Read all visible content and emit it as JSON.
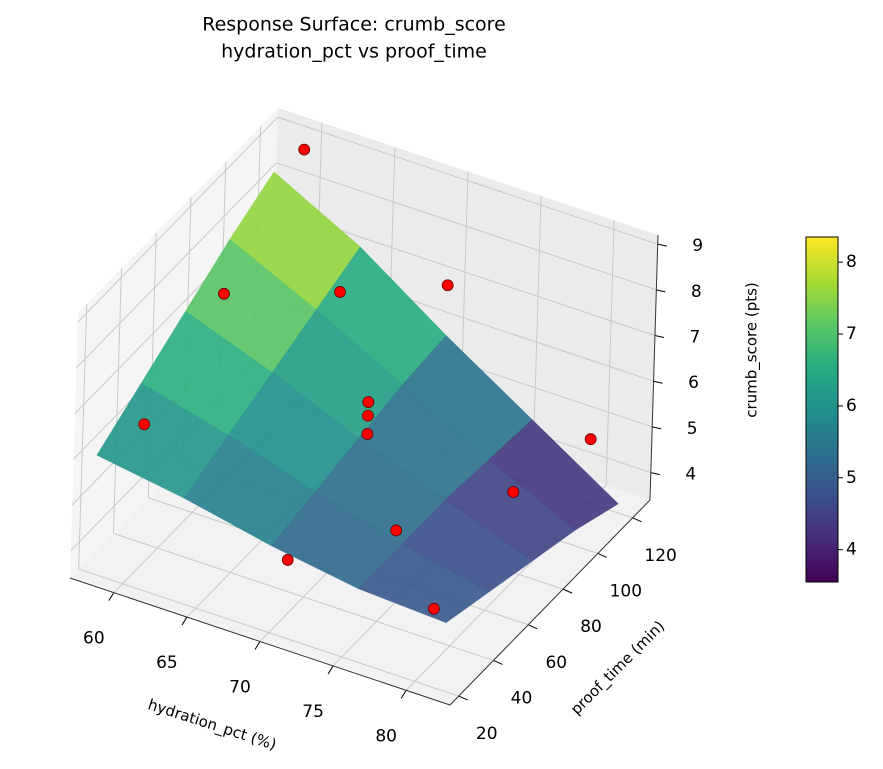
{
  "chart_data": {
    "type": "surface3d",
    "title": "Response Surface: crumb_score",
    "subtitle": "hydration_pct vs proof_time",
    "x_label": "hydration_pct (%)",
    "y_label": "proof_time (min)",
    "z_label": "crumb_score (pts)",
    "xlim": [
      57,
      83
    ],
    "xticks": [
      60,
      65,
      70,
      75,
      80
    ],
    "ylim": [
      15,
      130
    ],
    "yticks": [
      20,
      40,
      60,
      80,
      100,
      120
    ],
    "zlim": [
      3.4,
      9.2
    ],
    "zticks": [
      4,
      5,
      6,
      7,
      8,
      9
    ],
    "surface": {
      "x": [
        58,
        64,
        70,
        76,
        82
      ],
      "y": [
        20,
        45,
        70,
        95,
        120
      ],
      "z": [
        [
          6.0,
          5.7,
          5.3,
          5.0,
          4.9
        ],
        [
          6.6,
          6.1,
          5.5,
          5.0,
          4.6
        ],
        [
          7.2,
          6.5,
          5.7,
          5.0,
          4.3
        ],
        [
          7.8,
          6.9,
          5.9,
          4.9,
          4.0
        ],
        [
          8.3,
          7.3,
          6.0,
          4.8,
          3.6
        ]
      ]
    },
    "points": {
      "color": "#ff0000",
      "x": [
        60,
        60,
        60,
        70,
        70,
        70,
        80,
        80,
        80,
        70,
        70,
        65,
        75
      ],
      "y": [
        120,
        75,
        30,
        120,
        75,
        30,
        120,
        75,
        30,
        75,
        75,
        100,
        50
      ],
      "z": [
        9.0,
        7.6,
        6.5,
        7.1,
        6.0,
        4.6,
        4.8,
        5.4,
        4.6,
        5.6,
        6.3,
        7.2,
        5.0
      ]
    },
    "colorbar_lim": [
      3.55,
      8.35
    ],
    "colorbar_ticks": [
      4,
      5,
      6,
      7,
      8
    ],
    "grid": true
  }
}
